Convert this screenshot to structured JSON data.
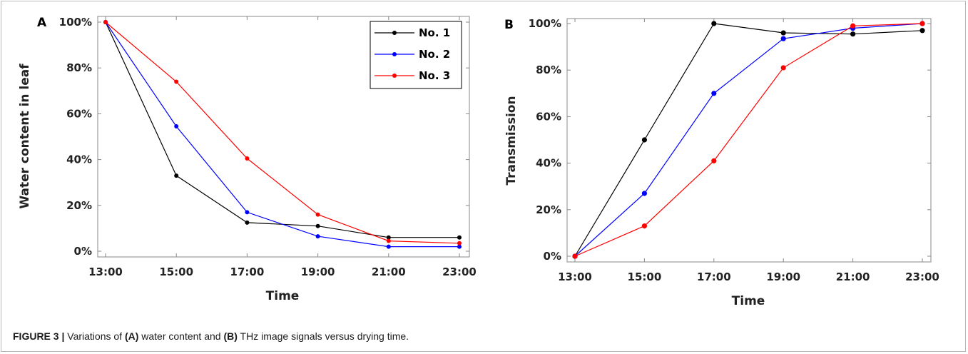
{
  "chart_data": [
    {
      "type": "line",
      "panel": "A",
      "x": [
        "13:00",
        "15:00",
        "17:00",
        "19:00",
        "21:00",
        "23:00"
      ],
      "xlabel": "Time",
      "ylabel": "Water content in leaf",
      "ylim": [
        0,
        100
      ],
      "yticks": [
        "0%",
        "20%",
        "40%",
        "60%",
        "80%",
        "100%"
      ],
      "legend": "top-right",
      "series": [
        {
          "name": "No. 1",
          "color": "#000000",
          "values": [
            100,
            33,
            12.5,
            11,
            6,
            6
          ]
        },
        {
          "name": "No. 2",
          "color": "#0000ff",
          "values": [
            100,
            54.5,
            17,
            6.5,
            2,
            2
          ]
        },
        {
          "name": "No. 3",
          "color": "#ff0000",
          "values": [
            100,
            74,
            40.5,
            16,
            4.5,
            3.5
          ]
        }
      ]
    },
    {
      "type": "line",
      "panel": "B",
      "x": [
        "13:00",
        "15:00",
        "17:00",
        "19:00",
        "21:00",
        "23:00"
      ],
      "xlabel": "Time",
      "ylabel": "Transmission",
      "ylim": [
        0,
        100
      ],
      "yticks": [
        "0%",
        "20%",
        "40%",
        "60%",
        "80%",
        "100%"
      ],
      "series": [
        {
          "color": "#000000",
          "values": [
            0,
            50,
            100,
            96,
            95.5,
            97
          ]
        },
        {
          "color": "#0000ff",
          "values": [
            0,
            27,
            70,
            93.5,
            98,
            100
          ]
        },
        {
          "color": "#ff0000",
          "values": [
            0,
            13,
            41,
            81,
            99,
            100
          ]
        }
      ]
    }
  ],
  "caption": {
    "figure_label": "FIGURE 3 |",
    "text_1": " Variations of ",
    "bold_1": "(A)",
    "text_2": " water content and ",
    "bold_2": "(B)",
    "text_3": " THz image signals versus drying time."
  }
}
